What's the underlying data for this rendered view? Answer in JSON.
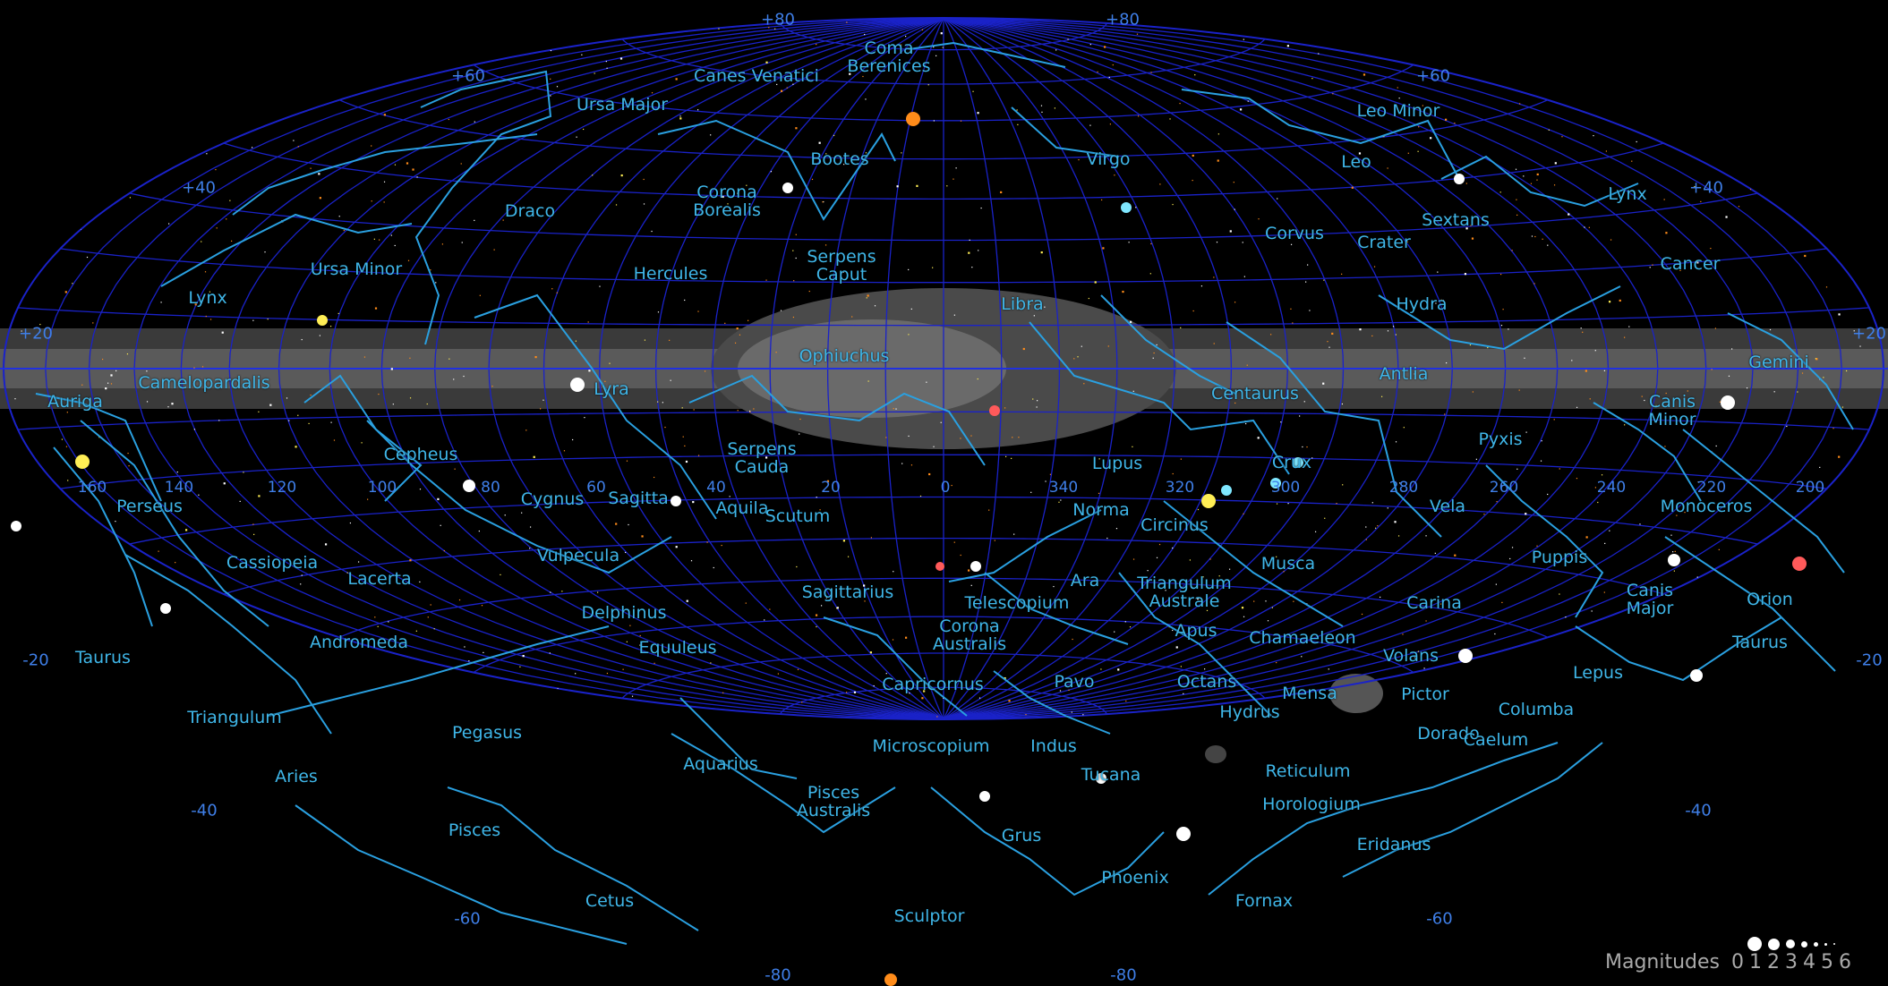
{
  "colors": {
    "background": "#000000",
    "grid": "#1a22c8",
    "constellation_lines": "#2aa0e0",
    "labels": "#3fb6e8",
    "milky_way": "#6e6e6e",
    "star_white": "#ffffff",
    "star_orange": "#ff8c1a",
    "star_yellow": "#ffee55",
    "star_red": "#ff5a5a",
    "star_cyan": "#7fe7ff"
  },
  "projection": "hammer-aitoff",
  "latitude_labels": [
    "+80",
    "+60",
    "+40",
    "+20",
    "-20",
    "-40",
    "-60",
    "-80"
  ],
  "longitude_labels": [
    "160",
    "140",
    "120",
    "100",
    "80",
    "60",
    "40",
    "20",
    "0",
    "340",
    "320",
    "300",
    "280",
    "260",
    "240",
    "220",
    "200"
  ],
  "constellations": [
    {
      "name": "Coma\nBerenices"
    },
    {
      "name": "Canes Venatici"
    },
    {
      "name": "Ursa Major"
    },
    {
      "name": "Bootes"
    },
    {
      "name": "Corona\nBorealis"
    },
    {
      "name": "Virgo"
    },
    {
      "name": "Leo Minor"
    },
    {
      "name": "Leo"
    },
    {
      "name": "Lynx"
    },
    {
      "name": "Sextans"
    },
    {
      "name": "Corvus"
    },
    {
      "name": "Crater"
    },
    {
      "name": "Cancer"
    },
    {
      "name": "Draco"
    },
    {
      "name": "Ursa Minor"
    },
    {
      "name": "Hercules"
    },
    {
      "name": "Serpens\nCaput"
    },
    {
      "name": "Libra"
    },
    {
      "name": "Hydra"
    },
    {
      "name": "Lynx"
    },
    {
      "name": "Ophiuchus"
    },
    {
      "name": "Gemini"
    },
    {
      "name": "Antlia"
    },
    {
      "name": "Auriga"
    },
    {
      "name": "Camelopardalis"
    },
    {
      "name": "Lyra"
    },
    {
      "name": "Centaurus"
    },
    {
      "name": "Canis\nMinor"
    },
    {
      "name": "Cepheus"
    },
    {
      "name": "Serpens\nCauda"
    },
    {
      "name": "Lupus"
    },
    {
      "name": "Crux"
    },
    {
      "name": "Pyxis"
    },
    {
      "name": "Cygnus"
    },
    {
      "name": "Sagitta"
    },
    {
      "name": "Aquila"
    },
    {
      "name": "Scutum"
    },
    {
      "name": "Norma"
    },
    {
      "name": "Circinus"
    },
    {
      "name": "Vela"
    },
    {
      "name": "Monoceros"
    },
    {
      "name": "Perseus"
    },
    {
      "name": "Cassiopeia"
    },
    {
      "name": "Vulpecula"
    },
    {
      "name": "Musca"
    },
    {
      "name": "Puppis"
    },
    {
      "name": "Lacerta"
    },
    {
      "name": "Ara"
    },
    {
      "name": "Triangulum\nAustrale"
    },
    {
      "name": "Sagittarius"
    },
    {
      "name": "Telescopium"
    },
    {
      "name": "Carina"
    },
    {
      "name": "Canis\nMajor"
    },
    {
      "name": "Orion"
    },
    {
      "name": "Delphinus"
    },
    {
      "name": "Corona\nAustralis"
    },
    {
      "name": "Apus"
    },
    {
      "name": "Chamaeleon"
    },
    {
      "name": "Taurus"
    },
    {
      "name": "Andromeda"
    },
    {
      "name": "Equuleus"
    },
    {
      "name": "Volans"
    },
    {
      "name": "Taurus"
    },
    {
      "name": "Lepus"
    },
    {
      "name": "Capricornus"
    },
    {
      "name": "Pavo"
    },
    {
      "name": "Octans"
    },
    {
      "name": "Mensa"
    },
    {
      "name": "Pictor"
    },
    {
      "name": "Columba"
    },
    {
      "name": "Triangulum"
    },
    {
      "name": "Hydrus"
    },
    {
      "name": "Pegasus"
    },
    {
      "name": "Aquarius"
    },
    {
      "name": "Microscopium"
    },
    {
      "name": "Indus"
    },
    {
      "name": "Dorado"
    },
    {
      "name": "Caelum"
    },
    {
      "name": "Reticulum"
    },
    {
      "name": "Aries"
    },
    {
      "name": "Tucana"
    },
    {
      "name": "Pisces\nAustralis"
    },
    {
      "name": "Horologium"
    },
    {
      "name": "Pisces"
    },
    {
      "name": "Grus"
    },
    {
      "name": "Phoenix"
    },
    {
      "name": "Eridanus"
    },
    {
      "name": "Cetus"
    },
    {
      "name": "Sculptor"
    },
    {
      "name": "Fornax"
    }
  ],
  "legend": {
    "title": "Magnitudes",
    "values": [
      "0",
      "1",
      "2",
      "3",
      "4",
      "5",
      "6"
    ]
  }
}
